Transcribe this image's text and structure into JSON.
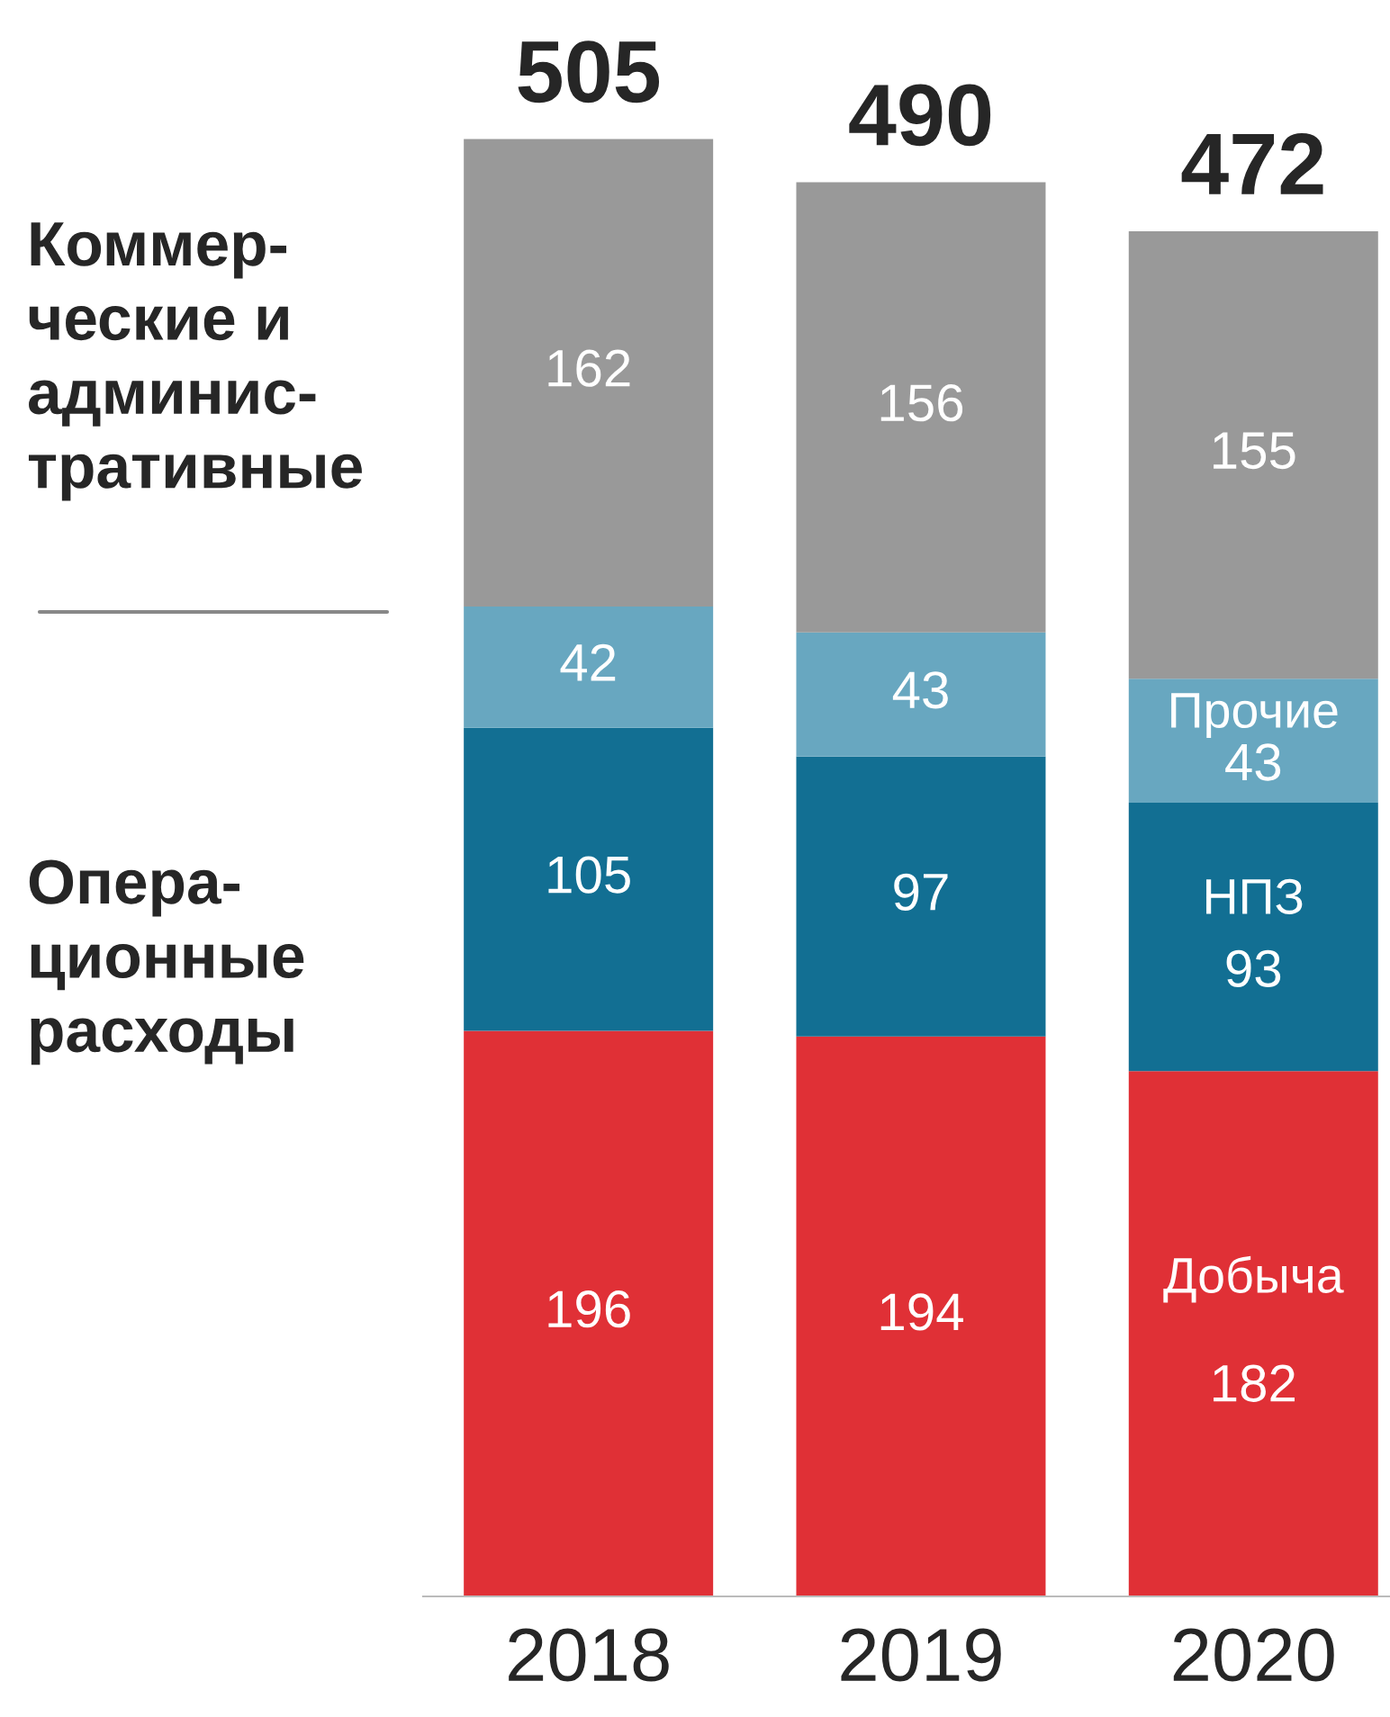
{
  "chart_data": {
    "type": "bar",
    "stacked": true,
    "data_labels": true,
    "grid": false,
    "legend": false,
    "categories": [
      "2018",
      "2019",
      "2020"
    ],
    "series": [
      {
        "name": "Добыча",
        "color": "#e03036",
        "values": [
          196,
          194,
          182
        ]
      },
      {
        "name": "НПЗ",
        "color": "#126f93",
        "values": [
          105,
          97,
          93
        ]
      },
      {
        "name": "Прочие",
        "color": "#68a7c0",
        "values": [
          42,
          43,
          43
        ]
      },
      {
        "color": "#999999",
        "values": [
          162,
          156,
          155
        ]
      }
    ],
    "totals": [
      "505",
      "490",
      "472"
    ],
    "annotations": [
      "Коммер-\nческие и\nадминис-\nтративные",
      "Опера-\nционные\nрасходы"
    ]
  }
}
